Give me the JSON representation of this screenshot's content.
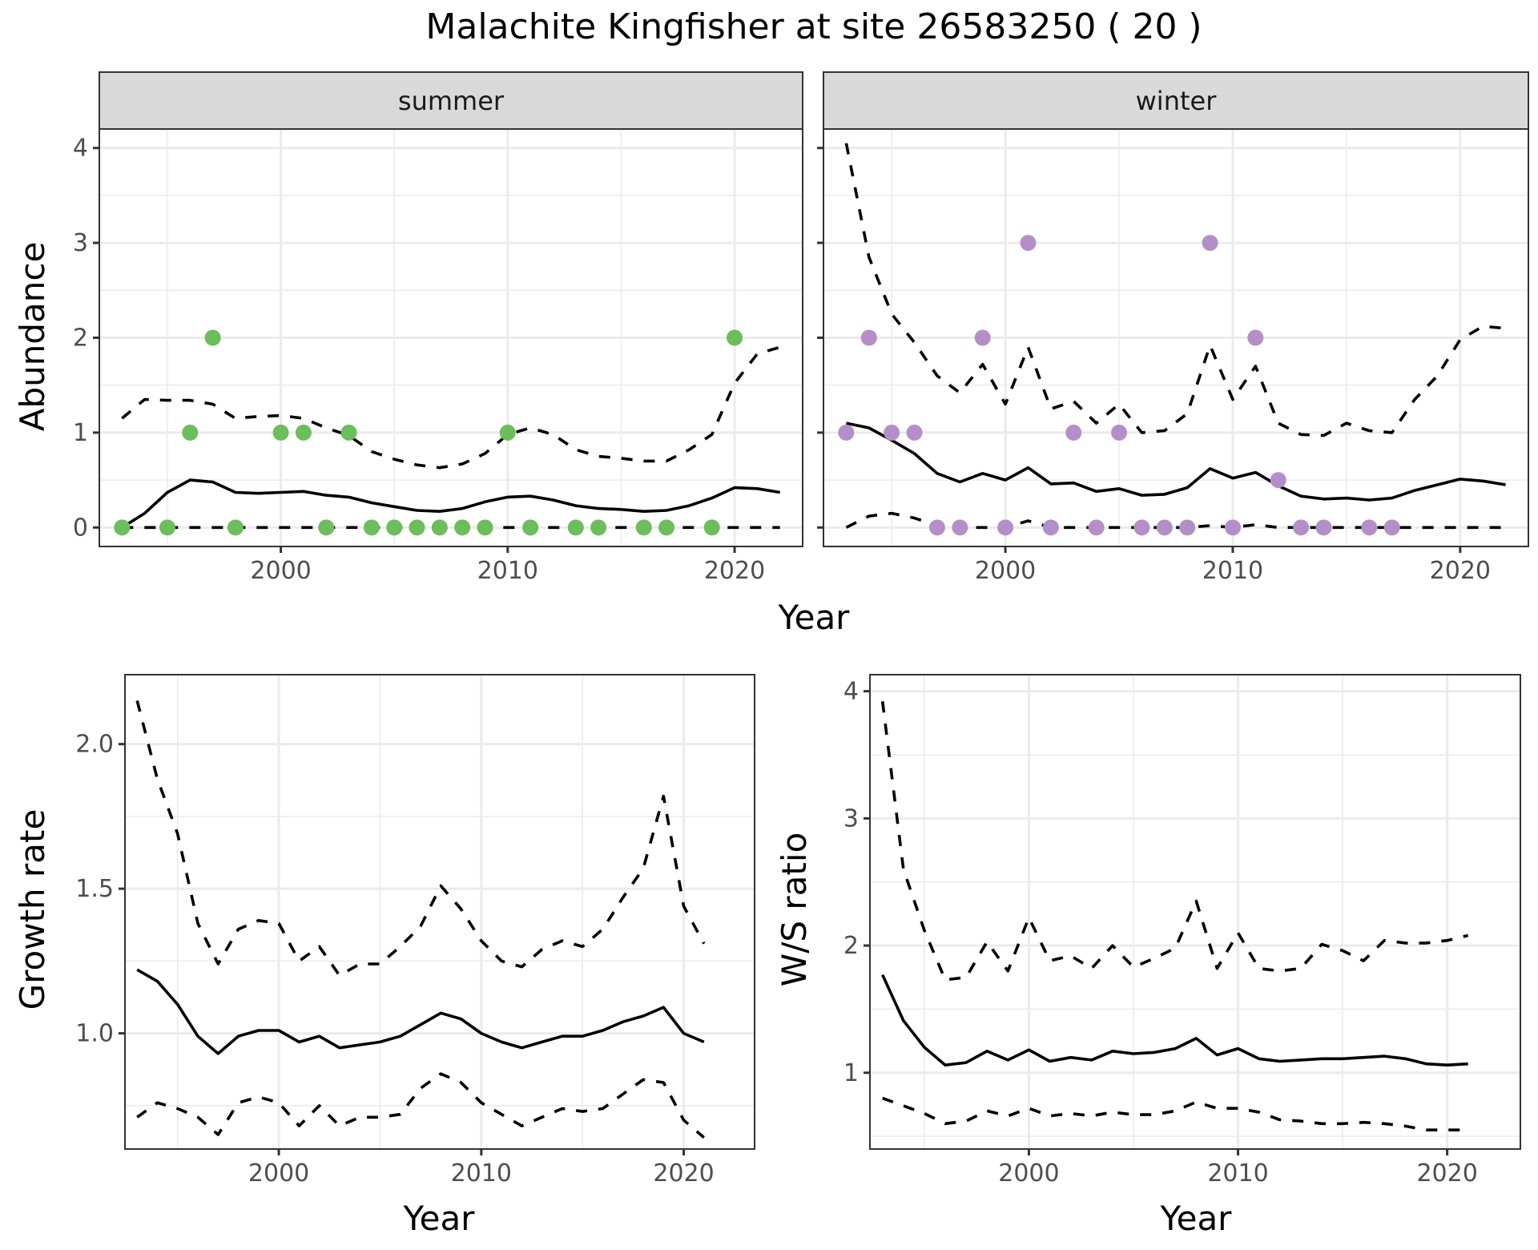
{
  "title": "Malachite Kingfisher at site 26583250 ( 20 )",
  "colors": {
    "summer_points": "#6cbd5c",
    "winter_points": "#b48fc7",
    "lines": "#000000",
    "strip_bg": "#d9d9d9",
    "grid": "#ebebeb"
  },
  "chart_data": [
    {
      "id": "abundance-summer",
      "type": "scatter",
      "facet": "summer",
      "xlabel": "Year",
      "ylabel": "Abundance",
      "xlim": [
        1992,
        2023
      ],
      "ylim": [
        -0.2,
        4.2
      ],
      "x_ticks": [
        2000,
        2010,
        2020
      ],
      "x_minor": [
        1995,
        2005,
        2015
      ],
      "y_ticks": [
        0,
        1,
        2,
        3,
        4
      ],
      "y_minor": [
        0.5,
        1.5,
        2.5,
        3.5
      ],
      "grid": true,
      "points": {
        "color": "#6cbd5c",
        "x": [
          1993,
          1995,
          1996,
          1997,
          1998,
          2000,
          2001,
          2002,
          2003,
          2004,
          2005,
          2006,
          2007,
          2008,
          2009,
          2010,
          2011,
          2013,
          2014,
          2016,
          2017,
          2019,
          2020
        ],
        "y": [
          0,
          0,
          1,
          2,
          0,
          1,
          1,
          0,
          1,
          0,
          0,
          0,
          0,
          0,
          0,
          1,
          0,
          0,
          0,
          0,
          0,
          0,
          2
        ]
      },
      "series": [
        {
          "name": "mean",
          "style": "solid",
          "x": [
            1993,
            1994,
            1995,
            1996,
            1997,
            1998,
            1999,
            2000,
            2001,
            2002,
            2003,
            2004,
            2005,
            2006,
            2007,
            2008,
            2009,
            2010,
            2011,
            2012,
            2013,
            2014,
            2015,
            2016,
            2017,
            2018,
            2019,
            2020,
            2021,
            2022
          ],
          "y": [
            0.0,
            0.15,
            0.37,
            0.5,
            0.48,
            0.37,
            0.36,
            0.37,
            0.38,
            0.34,
            0.32,
            0.26,
            0.22,
            0.18,
            0.17,
            0.2,
            0.27,
            0.32,
            0.33,
            0.29,
            0.23,
            0.2,
            0.19,
            0.17,
            0.18,
            0.23,
            0.31,
            0.42,
            0.41,
            0.37
          ]
        },
        {
          "name": "upper",
          "style": "dashed",
          "x": [
            1993,
            1994,
            1995,
            1996,
            1997,
            1998,
            1999,
            2000,
            2001,
            2002,
            2003,
            2004,
            2005,
            2006,
            2007,
            2008,
            2009,
            2010,
            2011,
            2012,
            2013,
            2014,
            2015,
            2016,
            2017,
            2018,
            2019,
            2020,
            2021,
            2022
          ],
          "y": [
            1.15,
            1.35,
            1.34,
            1.34,
            1.3,
            1.15,
            1.17,
            1.18,
            1.15,
            1.05,
            0.97,
            0.8,
            0.72,
            0.66,
            0.63,
            0.67,
            0.78,
            0.98,
            1.05,
            0.98,
            0.82,
            0.75,
            0.73,
            0.7,
            0.7,
            0.82,
            0.98,
            1.52,
            1.83,
            1.9
          ]
        },
        {
          "name": "lower",
          "style": "dashed",
          "x": [
            1993,
            2022
          ],
          "y": [
            0,
            0
          ]
        }
      ]
    },
    {
      "id": "abundance-winter",
      "type": "scatter",
      "facet": "winter",
      "xlabel": "Year",
      "ylabel": "Abundance",
      "xlim": [
        1992,
        2023
      ],
      "ylim": [
        -0.2,
        4.2
      ],
      "x_ticks": [
        2000,
        2010,
        2020
      ],
      "x_minor": [
        1995,
        2005,
        2015
      ],
      "y_ticks": [
        0,
        1,
        2,
        3,
        4
      ],
      "y_minor": [
        0.5,
        1.5,
        2.5,
        3.5
      ],
      "grid": true,
      "points": {
        "color": "#b48fc7",
        "x": [
          1993,
          1994,
          1995,
          1996,
          1997,
          1998,
          1999,
          2000,
          2001,
          2002,
          2003,
          2004,
          2005,
          2006,
          2007,
          2008,
          2009,
          2010,
          2011,
          2012,
          2013,
          2014,
          2016,
          2017
        ],
        "y": [
          1,
          2,
          1,
          1,
          0,
          0,
          2,
          0,
          3,
          0,
          1,
          0,
          1,
          0,
          0,
          0,
          3,
          0,
          2,
          0.5,
          0,
          0,
          0,
          0
        ]
      },
      "series": [
        {
          "name": "mean",
          "style": "solid",
          "x": [
            1993,
            1994,
            1995,
            1996,
            1997,
            1998,
            1999,
            2000,
            2001,
            2002,
            2003,
            2004,
            2005,
            2006,
            2007,
            2008,
            2009,
            2010,
            2011,
            2012,
            2013,
            2014,
            2015,
            2016,
            2017,
            2018,
            2019,
            2020,
            2021,
            2022
          ],
          "y": [
            1.1,
            1.05,
            0.92,
            0.78,
            0.57,
            0.48,
            0.57,
            0.5,
            0.63,
            0.46,
            0.47,
            0.38,
            0.41,
            0.34,
            0.35,
            0.42,
            0.62,
            0.52,
            0.58,
            0.44,
            0.33,
            0.3,
            0.31,
            0.29,
            0.31,
            0.39,
            0.45,
            0.51,
            0.49,
            0.45
          ]
        },
        {
          "name": "upper",
          "style": "dashed",
          "x": [
            1993,
            1994,
            1995,
            1996,
            1997,
            1998,
            1999,
            2000,
            2001,
            2002,
            2003,
            2004,
            2005,
            2006,
            2007,
            2008,
            2009,
            2010,
            2011,
            2012,
            2013,
            2014,
            2015,
            2016,
            2017,
            2018,
            2019,
            2020,
            2021,
            2022
          ],
          "y": [
            4.05,
            2.85,
            2.25,
            1.95,
            1.6,
            1.42,
            1.72,
            1.3,
            1.9,
            1.25,
            1.33,
            1.1,
            1.3,
            1.0,
            1.02,
            1.2,
            1.92,
            1.35,
            1.7,
            1.1,
            0.98,
            0.97,
            1.1,
            1.02,
            1.0,
            1.35,
            1.6,
            1.98,
            2.12,
            2.1
          ]
        },
        {
          "name": "lower",
          "style": "dashed",
          "x": [
            1993,
            1994,
            1995,
            1996,
            1997,
            1998,
            1999,
            2000,
            2001,
            2002,
            2003,
            2004,
            2005,
            2006,
            2007,
            2008,
            2009,
            2010,
            2011,
            2012,
            2013,
            2014,
            2015,
            2016,
            2017,
            2018,
            2019,
            2020,
            2021,
            2022
          ],
          "y": [
            0.0,
            0.12,
            0.15,
            0.1,
            0.02,
            0.0,
            0.0,
            0.0,
            0.07,
            0.0,
            0.0,
            0.0,
            0.0,
            0.0,
            0.0,
            0.0,
            0.02,
            0.0,
            0.03,
            0.0,
            0.0,
            0.0,
            0.0,
            0.0,
            0.0,
            0.0,
            0.0,
            0.0,
            0.0,
            0.0
          ]
        }
      ]
    },
    {
      "id": "growth-rate",
      "type": "line",
      "xlabel": "Year",
      "ylabel": "Growth rate",
      "xlim": [
        1992.4,
        2023.5
      ],
      "ylim": [
        0.6,
        2.24
      ],
      "x_ticks": [
        2000,
        2010,
        2020
      ],
      "x_minor": [
        1995,
        2005,
        2015
      ],
      "y_ticks": [
        1.0,
        1.5,
        2.0
      ],
      "y_tick_labels": [
        "1.0",
        "1.5",
        "2.0"
      ],
      "y_minor": [
        0.75,
        1.25,
        1.75
      ],
      "grid": true,
      "series": [
        {
          "name": "mean",
          "style": "solid",
          "x": [
            1993,
            1994,
            1995,
            1996,
            1997,
            1998,
            1999,
            2000,
            2001,
            2002,
            2003,
            2004,
            2005,
            2006,
            2007,
            2008,
            2009,
            2010,
            2011,
            2012,
            2013,
            2014,
            2015,
            2016,
            2017,
            2018,
            2019,
            2020,
            2021
          ],
          "y": [
            1.22,
            1.18,
            1.1,
            0.99,
            0.93,
            0.99,
            1.01,
            1.01,
            0.97,
            0.99,
            0.95,
            0.96,
            0.97,
            0.99,
            1.03,
            1.07,
            1.05,
            1.0,
            0.97,
            0.95,
            0.97,
            0.99,
            0.99,
            1.01,
            1.04,
            1.06,
            1.09,
            1.0,
            0.97
          ]
        },
        {
          "name": "upper",
          "style": "dashed",
          "x": [
            1993,
            1994,
            1995,
            1996,
            1997,
            1998,
            1999,
            2000,
            2001,
            2002,
            2003,
            2004,
            2005,
            2006,
            2007,
            2008,
            2009,
            2010,
            2011,
            2012,
            2013,
            2014,
            2015,
            2016,
            2017,
            2018,
            2019,
            2020,
            2021
          ],
          "y": [
            2.15,
            1.88,
            1.69,
            1.38,
            1.24,
            1.36,
            1.39,
            1.38,
            1.25,
            1.3,
            1.2,
            1.24,
            1.24,
            1.3,
            1.37,
            1.51,
            1.43,
            1.32,
            1.25,
            1.23,
            1.29,
            1.32,
            1.3,
            1.36,
            1.47,
            1.57,
            1.82,
            1.44,
            1.31
          ]
        },
        {
          "name": "lower",
          "style": "dashed",
          "x": [
            1993,
            1994,
            1995,
            1996,
            1997,
            1998,
            1999,
            2000,
            2001,
            2002,
            2003,
            2004,
            2005,
            2006,
            2007,
            2008,
            2009,
            2010,
            2011,
            2012,
            2013,
            2014,
            2015,
            2016,
            2017,
            2018,
            2019,
            2020,
            2021
          ],
          "y": [
            0.71,
            0.76,
            0.74,
            0.71,
            0.65,
            0.76,
            0.78,
            0.76,
            0.68,
            0.75,
            0.68,
            0.71,
            0.71,
            0.72,
            0.81,
            0.86,
            0.83,
            0.76,
            0.72,
            0.68,
            0.71,
            0.74,
            0.73,
            0.74,
            0.79,
            0.84,
            0.83,
            0.7,
            0.64
          ]
        }
      ]
    },
    {
      "id": "ws-ratio",
      "type": "line",
      "xlabel": "Year",
      "ylabel": "W/S ratio",
      "xlim": [
        1992.4,
        2023.5
      ],
      "ylim": [
        0.4,
        4.13
      ],
      "x_ticks": [
        2000,
        2010,
        2020
      ],
      "x_minor": [
        1995,
        2005,
        2015
      ],
      "y_ticks": [
        1,
        2,
        3,
        4
      ],
      "y_tick_labels": [
        "1",
        "2",
        "3",
        "4"
      ],
      "y_minor": [
        0.5,
        1.5,
        2.5,
        3.5
      ],
      "grid": true,
      "series": [
        {
          "name": "mean",
          "style": "solid",
          "x": [
            1993,
            1994,
            1995,
            1996,
            1997,
            1998,
            1999,
            2000,
            2001,
            2002,
            2003,
            2004,
            2005,
            2006,
            2007,
            2008,
            2009,
            2010,
            2011,
            2012,
            2013,
            2014,
            2015,
            2016,
            2017,
            2018,
            2019,
            2020,
            2021
          ],
          "y": [
            1.77,
            1.41,
            1.2,
            1.06,
            1.08,
            1.17,
            1.1,
            1.18,
            1.09,
            1.12,
            1.1,
            1.17,
            1.15,
            1.16,
            1.19,
            1.27,
            1.14,
            1.19,
            1.11,
            1.09,
            1.1,
            1.11,
            1.11,
            1.12,
            1.13,
            1.11,
            1.07,
            1.06,
            1.07
          ]
        },
        {
          "name": "upper",
          "style": "dashed",
          "x": [
            1993,
            1994,
            1995,
            1996,
            1997,
            1998,
            1999,
            2000,
            2001,
            2002,
            2003,
            2004,
            2005,
            2006,
            2007,
            2008,
            2009,
            2010,
            2011,
            2012,
            2013,
            2014,
            2015,
            2016,
            2017,
            2018,
            2019,
            2020,
            2021
          ],
          "y": [
            3.92,
            2.6,
            2.12,
            1.73,
            1.75,
            2.03,
            1.8,
            2.22,
            1.88,
            1.92,
            1.82,
            2.0,
            1.83,
            1.9,
            1.98,
            2.35,
            1.82,
            2.1,
            1.82,
            1.8,
            1.82,
            2.01,
            1.96,
            1.88,
            2.04,
            2.02,
            2.02,
            2.04,
            2.08
          ]
        },
        {
          "name": "lower",
          "style": "dashed",
          "x": [
            1993,
            1994,
            1995,
            1996,
            1997,
            1998,
            1999,
            2000,
            2001,
            2002,
            2003,
            2004,
            2005,
            2006,
            2007,
            2008,
            2009,
            2010,
            2011,
            2012,
            2013,
            2014,
            2015,
            2016,
            2017,
            2018,
            2019,
            2020,
            2021
          ],
          "y": [
            0.8,
            0.74,
            0.68,
            0.6,
            0.62,
            0.7,
            0.66,
            0.72,
            0.66,
            0.68,
            0.66,
            0.69,
            0.67,
            0.67,
            0.7,
            0.77,
            0.72,
            0.72,
            0.69,
            0.63,
            0.62,
            0.6,
            0.6,
            0.61,
            0.6,
            0.58,
            0.55,
            0.55,
            0.55
          ]
        }
      ]
    }
  ],
  "shared_top_xlabel": "Year"
}
